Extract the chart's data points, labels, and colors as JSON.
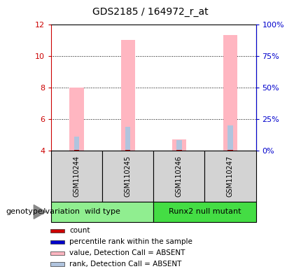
{
  "title": "GDS2185 / 164972_r_at",
  "samples": [
    "GSM110244",
    "GSM110245",
    "GSM110246",
    "GSM110247"
  ],
  "groups": [
    {
      "name": "wild type",
      "color": "#90ee90",
      "start": 0,
      "end": 2
    },
    {
      "name": "Runx2 null mutant",
      "color": "#44dd44",
      "start": 2,
      "end": 4
    }
  ],
  "pink_bar_tops": [
    8.0,
    11.0,
    4.7,
    11.3
  ],
  "blue_bar_tops": [
    4.9,
    5.5,
    4.65,
    5.6
  ],
  "red_bar_tops": [
    4.06,
    4.06,
    4.06,
    4.06
  ],
  "bar_bottom": 4.0,
  "ylim_left": [
    4.0,
    12.0
  ],
  "ylim_right": [
    0.0,
    100.0
  ],
  "yticks_left": [
    4,
    6,
    8,
    10,
    12
  ],
  "ytick_labels_left": [
    "4",
    "6",
    "8",
    "10",
    "12"
  ],
  "yticks_right": [
    0,
    25,
    50,
    75,
    100
  ],
  "ytick_labels_right": [
    "0%",
    "25%",
    "50%",
    "75%",
    "100%"
  ],
  "pink_bar_width": 0.28,
  "blue_bar_width": 0.1,
  "red_bar_width": 0.1,
  "sample_box_color": "#d3d3d3",
  "legend_items": [
    {
      "color": "#cc0000",
      "label": "count"
    },
    {
      "color": "#0000cc",
      "label": "percentile rank within the sample"
    },
    {
      "color": "#ffb6c1",
      "label": "value, Detection Call = ABSENT"
    },
    {
      "color": "#b0c4de",
      "label": "rank, Detection Call = ABSENT"
    }
  ],
  "left_axis_color": "#cc0000",
  "right_axis_color": "#0000cc",
  "genotype_label": "genotype/variation",
  "arrow_color": "#888888"
}
